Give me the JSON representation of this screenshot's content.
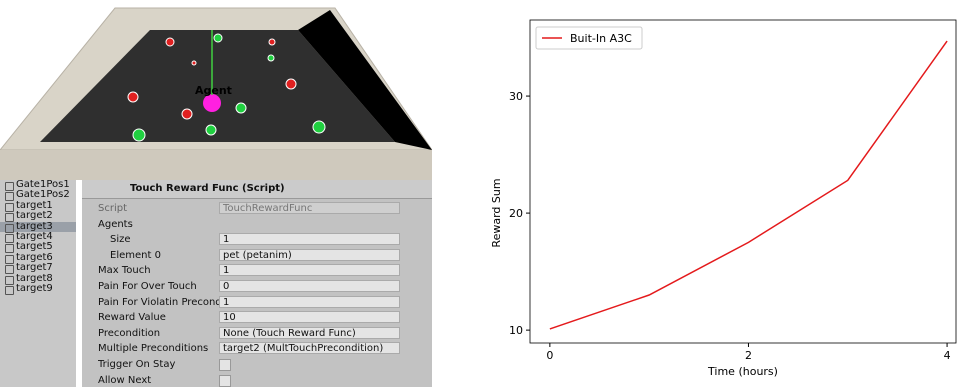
{
  "scene": {
    "label": "Agent"
  },
  "hierarchy": {
    "items": [
      "Gate1Pos1",
      "Gate1Pos2",
      "target1",
      "target2",
      "target3",
      "target4",
      "target5",
      "target6",
      "target7",
      "target8",
      "target9"
    ]
  },
  "inspector": {
    "component": "Touch Reward Func (Script)",
    "fields": [
      {
        "label": "Script",
        "value": "TouchRewardFunc"
      },
      {
        "label": "Agents"
      },
      {
        "label": "Size",
        "value": "1"
      },
      {
        "label": "Element 0",
        "value": "pet (petanim)"
      },
      {
        "label": "Max Touch",
        "value": "1"
      },
      {
        "label": "Pain For Over Touch",
        "value": "0"
      },
      {
        "label": "Pain For Violatin Preconditi",
        "value": "1"
      },
      {
        "label": "Reward Value",
        "value": "10"
      },
      {
        "label": "Precondition",
        "value": "None (Touch Reward Func)"
      },
      {
        "label": "Multiple Preconditions",
        "value": "target2 (MultTouchPrecondition)"
      },
      {
        "label": "Trigger On Stay",
        "checked": false
      },
      {
        "label": "Allow Next",
        "checked": false
      }
    ]
  },
  "chart_data": {
    "type": "line",
    "x_label": "Time (hours)",
    "y_label": "Reward Sum",
    "x": [
      0,
      1,
      2,
      3,
      4
    ],
    "series": [
      {
        "name": "Buit-In A3C",
        "color": "#e41a1c",
        "values": [
          10.1,
          13.0,
          17.5,
          22.8,
          34.7
        ]
      }
    ],
    "xlim": [
      -0.2,
      4.1
    ],
    "ylim": [
      8.9,
      36.5
    ],
    "xticks": [
      0,
      2,
      4
    ],
    "yticks": [
      10,
      20,
      30
    ],
    "legend": "upper left"
  }
}
